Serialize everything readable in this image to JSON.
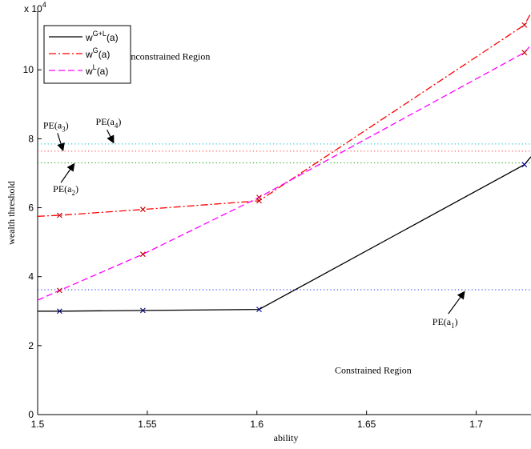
{
  "chart_data": {
    "type": "line",
    "xlabel": "ability",
    "ylabel": "wealth threshold",
    "y_multiplier_label": "x 10",
    "y_multiplier_exp": "4",
    "xlim": [
      1.5,
      1.725
    ],
    "ylim": [
      0,
      11.7
    ],
    "xticks": [
      1.5,
      1.55,
      1.6,
      1.65,
      1.7
    ],
    "xtick_labels": [
      "1.5",
      "1.55",
      "1.6",
      "1.65",
      "1.7"
    ],
    "yticks": [
      0,
      2,
      4,
      6,
      8,
      10
    ],
    "ytick_labels": [
      "0",
      "2",
      "4",
      "6",
      "8",
      "10"
    ],
    "grid": false,
    "legend_position": "top-left",
    "series": [
      {
        "legend_base": "w",
        "legend_sup": "G+L",
        "legend_tail": "(a)",
        "color": "#000000",
        "dash": "solid",
        "x": [
          1.5,
          1.51,
          1.548,
          1.601,
          1.722,
          1.725
        ],
        "y": [
          3.0,
          3.0,
          3.02,
          3.05,
          7.25,
          7.48
        ],
        "markers": [
          [
            1.51,
            3.0
          ],
          [
            1.548,
            3.02
          ],
          [
            1.601,
            3.05
          ],
          [
            1.722,
            7.25
          ]
        ]
      },
      {
        "legend_base": "w",
        "legend_sup": "G",
        "legend_tail": "(a)",
        "color": "#ff0000",
        "dash": "dashdot",
        "x": [
          1.5,
          1.51,
          1.548,
          1.601,
          1.722,
          1.725
        ],
        "y": [
          5.75,
          5.78,
          5.95,
          6.2,
          11.3,
          11.65
        ],
        "markers": [
          [
            1.51,
            5.78
          ],
          [
            1.548,
            5.95
          ],
          [
            1.601,
            6.2
          ],
          [
            1.722,
            11.3
          ]
        ]
      },
      {
        "legend_base": "w",
        "legend_sup": "L",
        "legend_tail": "(a)",
        "color": "#ff00ff",
        "dash": "dashed",
        "x": [
          1.5,
          1.51,
          1.548,
          1.601,
          1.722,
          1.725
        ],
        "y": [
          3.32,
          3.6,
          4.65,
          6.3,
          10.5,
          10.72
        ],
        "markers": [
          [
            1.51,
            3.6
          ],
          [
            1.548,
            4.65
          ],
          [
            1.601,
            6.3
          ],
          [
            1.722,
            10.5
          ]
        ]
      }
    ],
    "hlines": [
      {
        "y": 7.85,
        "color": "#00bfbf"
      },
      {
        "y": 7.64,
        "color": "#ff3030"
      },
      {
        "y": 7.3,
        "color": "#00a000"
      },
      {
        "y": 3.62,
        "color": "#2020ff"
      }
    ],
    "region_labels": {
      "unconstrained": "Unconstrained Region",
      "constrained": "Constrained Region"
    },
    "annotations": [
      {
        "base": "PE(a",
        "sub": "1",
        "tail": ")",
        "text_at": [
          1.68,
          2.6
        ],
        "arrow_to": [
          1.6945,
          3.55
        ]
      },
      {
        "base": "PE(a",
        "sub": "2",
        "tail": ")",
        "text_at": [
          1.507,
          6.45
        ],
        "arrow_to": [
          1.5165,
          7.26
        ]
      },
      {
        "base": "PE(a",
        "sub": "3",
        "tail": ")",
        "text_at": [
          1.5025,
          8.3
        ],
        "arrow_to": [
          1.5115,
          7.68
        ]
      },
      {
        "base": "PE(a",
        "sub": "4",
        "tail": ")",
        "text_at": [
          1.5265,
          8.4
        ],
        "arrow_to": [
          1.5345,
          7.9
        ]
      }
    ]
  }
}
